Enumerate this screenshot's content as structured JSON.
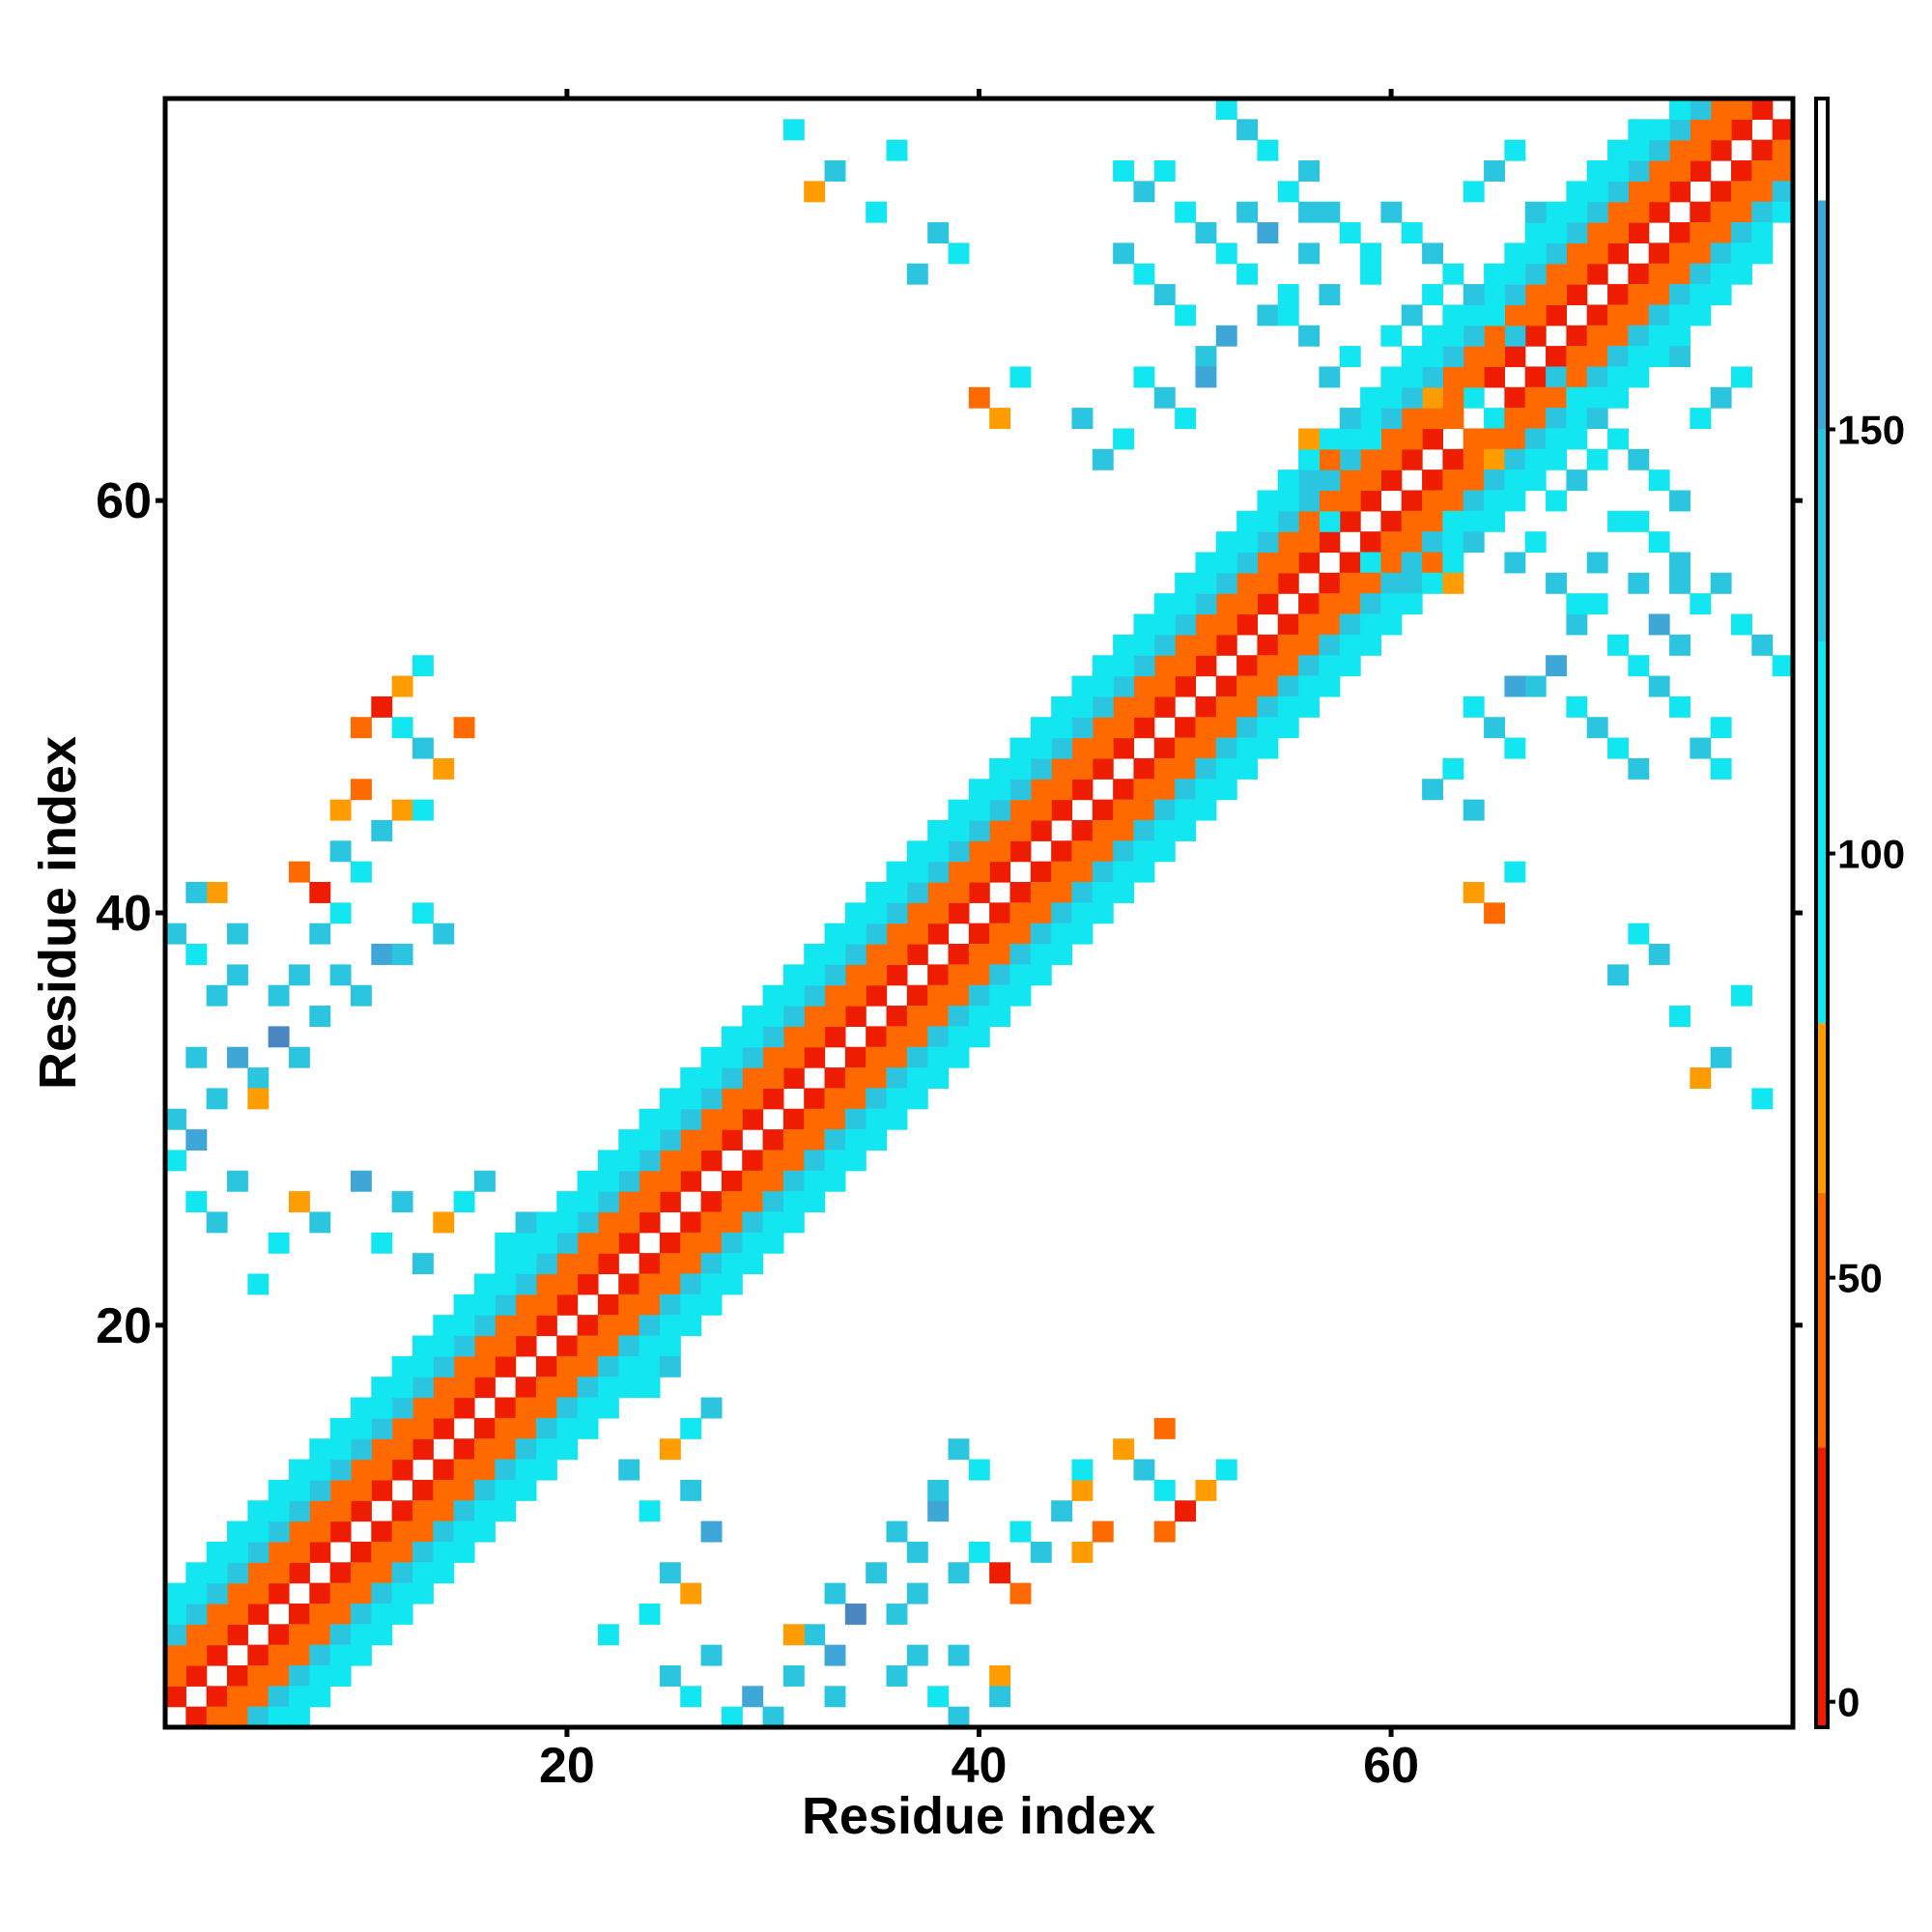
{
  "chart_data": {
    "type": "heatmap",
    "xlabel": "Residue index",
    "ylabel": "Residue index",
    "xlim": [
      0.5,
      79.5
    ],
    "ylim": [
      0.5,
      79.5
    ],
    "x_ticks": [
      20,
      40,
      60
    ],
    "y_ticks": [
      20,
      40,
      60
    ],
    "x_tick_labels": [
      "20",
      "40",
      "60"
    ],
    "y_tick_labels": [
      "20",
      "40",
      "60"
    ],
    "colorbar": {
      "range": [
        -3,
        189
      ],
      "ticks": [
        0,
        50,
        100,
        150
      ],
      "tick_labels": [
        "0",
        "50",
        "100",
        "150"
      ],
      "bands": [
        {
          "from": -3,
          "to": 30,
          "color": "#ee1c00"
        },
        {
          "from": 30,
          "to": 60,
          "color": "#ff6a00"
        },
        {
          "from": 60,
          "to": 80,
          "color": "#ff9d00"
        },
        {
          "from": 80,
          "to": 125,
          "color": "#12e6f0"
        },
        {
          "from": 125,
          "to": 150,
          "color": "#2cc5e0"
        },
        {
          "from": 150,
          "to": 177,
          "color": "#3fa6d8"
        },
        {
          "from": 177,
          "to": 189,
          "color": "#ffffff"
        }
      ]
    },
    "color_map": {
      "r": "#ee1c00",
      "o": "#ff6a00",
      "a": "#ff9d00",
      "c": "#12e6f0",
      "t": "#2cc5e0",
      "b": "#3fa6d8",
      "d": "#4a86c0"
    },
    "cells_description": "Contact map; each cell is [i, j, class]. Classes map to colours via color_map. Matrix is symmetric.",
    "diagonal_bands": [
      {
        "offset": 1,
        "class": "r",
        "from": 1,
        "to": 78
      },
      {
        "offset": 2,
        "class": "o",
        "from": 1,
        "to": 77
      },
      {
        "offset": 3,
        "class": "o",
        "from": 1,
        "to": 76
      },
      {
        "offset": 4,
        "class": "t",
        "from": 1,
        "to": 75
      },
      {
        "offset": 5,
        "class": "c",
        "from": 1,
        "to": 74
      },
      {
        "offset": 6,
        "class": "c",
        "from": 1,
        "to": 72
      }
    ],
    "off_diagonal_cells": [
      [
        1,
        28,
        "c"
      ],
      [
        1,
        30,
        "t"
      ],
      [
        2,
        29,
        "b"
      ],
      [
        3,
        31,
        "t"
      ],
      [
        4,
        33,
        "b"
      ],
      [
        5,
        32,
        "t"
      ],
      [
        6,
        34,
        "d"
      ],
      [
        7,
        33,
        "t"
      ],
      [
        8,
        35,
        "t"
      ],
      [
        9,
        37,
        "t"
      ],
      [
        10,
        36,
        "t"
      ],
      [
        11,
        38,
        "b"
      ],
      [
        12,
        38,
        "t"
      ],
      [
        13,
        40,
        "c"
      ],
      [
        14,
        39,
        "t"
      ],
      [
        2,
        33,
        "t"
      ],
      [
        3,
        36,
        "t"
      ],
      [
        2,
        38,
        "c"
      ],
      [
        1,
        39,
        "t"
      ],
      [
        4,
        37,
        "t"
      ],
      [
        6,
        36,
        "t"
      ],
      [
        7,
        37,
        "t"
      ],
      [
        8,
        39,
        "t"
      ],
      [
        9,
        40,
        "c"
      ],
      [
        5,
        31,
        "a"
      ],
      [
        4,
        39,
        "t"
      ],
      [
        3,
        41,
        "a"
      ],
      [
        2,
        41,
        "t"
      ],
      [
        7,
        42,
        "o"
      ],
      [
        8,
        41,
        "r"
      ],
      [
        9,
        43,
        "t"
      ],
      [
        10,
        42,
        "c"
      ],
      [
        11,
        44,
        "t"
      ],
      [
        9,
        45,
        "a"
      ],
      [
        10,
        46,
        "o"
      ],
      [
        12,
        45,
        "a"
      ],
      [
        13,
        45,
        "c"
      ],
      [
        13,
        48,
        "t"
      ],
      [
        14,
        47,
        "a"
      ],
      [
        15,
        49,
        "o"
      ],
      [
        12,
        49,
        "c"
      ],
      [
        10,
        49,
        "o"
      ],
      [
        11,
        50,
        "r"
      ],
      [
        12,
        51,
        "a"
      ],
      [
        13,
        52,
        "c"
      ],
      [
        2,
        26,
        "c"
      ],
      [
        3,
        25,
        "t"
      ],
      [
        4,
        27,
        "t"
      ],
      [
        6,
        24,
        "c"
      ],
      [
        5,
        22,
        "c"
      ],
      [
        7,
        26,
        "a"
      ],
      [
        8,
        25,
        "t"
      ],
      [
        10,
        27,
        "b"
      ],
      [
        11,
        24,
        "c"
      ],
      [
        12,
        26,
        "t"
      ],
      [
        13,
        23,
        "t"
      ],
      [
        14,
        25,
        "a"
      ],
      [
        15,
        26,
        "c"
      ],
      [
        16,
        27,
        "t"
      ],
      [
        17,
        24,
        "c"
      ],
      [
        18,
        25,
        "t"
      ],
      [
        47,
        76,
        "c"
      ],
      [
        48,
        75,
        "t"
      ],
      [
        49,
        76,
        "c"
      ],
      [
        50,
        74,
        "c"
      ],
      [
        51,
        73,
        "t"
      ],
      [
        52,
        72,
        "c"
      ],
      [
        53,
        74,
        "t"
      ],
      [
        54,
        73,
        "b"
      ],
      [
        55,
        75,
        "c"
      ],
      [
        56,
        74,
        "t"
      ],
      [
        55,
        70,
        "c"
      ],
      [
        54,
        69,
        "t"
      ],
      [
        53,
        71,
        "c"
      ],
      [
        52,
        68,
        "b"
      ],
      [
        51,
        67,
        "t"
      ],
      [
        50,
        69,
        "c"
      ],
      [
        49,
        70,
        "t"
      ],
      [
        48,
        71,
        "c"
      ],
      [
        47,
        72,
        "t"
      ],
      [
        58,
        73,
        "t"
      ],
      [
        59,
        72,
        "c"
      ],
      [
        60,
        74,
        "t"
      ],
      [
        61,
        73,
        "c"
      ],
      [
        62,
        72,
        "t"
      ],
      [
        63,
        71,
        "c"
      ],
      [
        64,
        70,
        "t"
      ],
      [
        65,
        69,
        "c"
      ],
      [
        66,
        68,
        "t"
      ],
      [
        64,
        75,
        "c"
      ],
      [
        65,
        76,
        "t"
      ],
      [
        66,
        77,
        "c"
      ],
      [
        67,
        74,
        "t"
      ],
      [
        62,
        65,
        "a"
      ],
      [
        63,
        64,
        "o"
      ],
      [
        63,
        66,
        "o"
      ],
      [
        64,
        65,
        "c"
      ],
      [
        56,
        63,
        "a"
      ],
      [
        57,
        62,
        "o"
      ],
      [
        58,
        64,
        "t"
      ],
      [
        59,
        63,
        "c"
      ],
      [
        55,
        60,
        "c"
      ],
      [
        56,
        61,
        "t"
      ],
      [
        57,
        59,
        "c"
      ],
      [
        48,
        66,
        "c"
      ],
      [
        49,
        65,
        "t"
      ],
      [
        50,
        64,
        "c"
      ],
      [
        51,
        66,
        "b"
      ],
      [
        46,
        62,
        "t"
      ],
      [
        47,
        63,
        "c"
      ],
      [
        45,
        64,
        "t"
      ],
      [
        60,
        68,
        "c"
      ],
      [
        61,
        69,
        "t"
      ],
      [
        62,
        70,
        "c"
      ],
      [
        41,
        64,
        "a"
      ],
      [
        40,
        65,
        "o"
      ],
      [
        42,
        66,
        "c"
      ],
      [
        39,
        72,
        "c"
      ],
      [
        38,
        73,
        "t"
      ],
      [
        35,
        74,
        "c"
      ],
      [
        32,
        75,
        "a"
      ],
      [
        33,
        76,
        "t"
      ],
      [
        36,
        77,
        "c"
      ],
      [
        37,
        71,
        "t"
      ],
      [
        31,
        78,
        "c"
      ],
      [
        66,
        57,
        "t"
      ],
      [
        67,
        58,
        "c"
      ],
      [
        68,
        56,
        "t"
      ],
      [
        69,
        55,
        "c"
      ],
      [
        70,
        57,
        "t"
      ],
      [
        71,
        59,
        "c"
      ],
      [
        72,
        56,
        "t"
      ],
      [
        73,
        58,
        "c"
      ],
      [
        74,
        57,
        "t"
      ],
      [
        75,
        55,
        "c"
      ],
      [
        76,
        56,
        "t"
      ],
      [
        77,
        54,
        "c"
      ],
      [
        78,
        53,
        "t"
      ],
      [
        79,
        52,
        "c"
      ]
    ]
  }
}
